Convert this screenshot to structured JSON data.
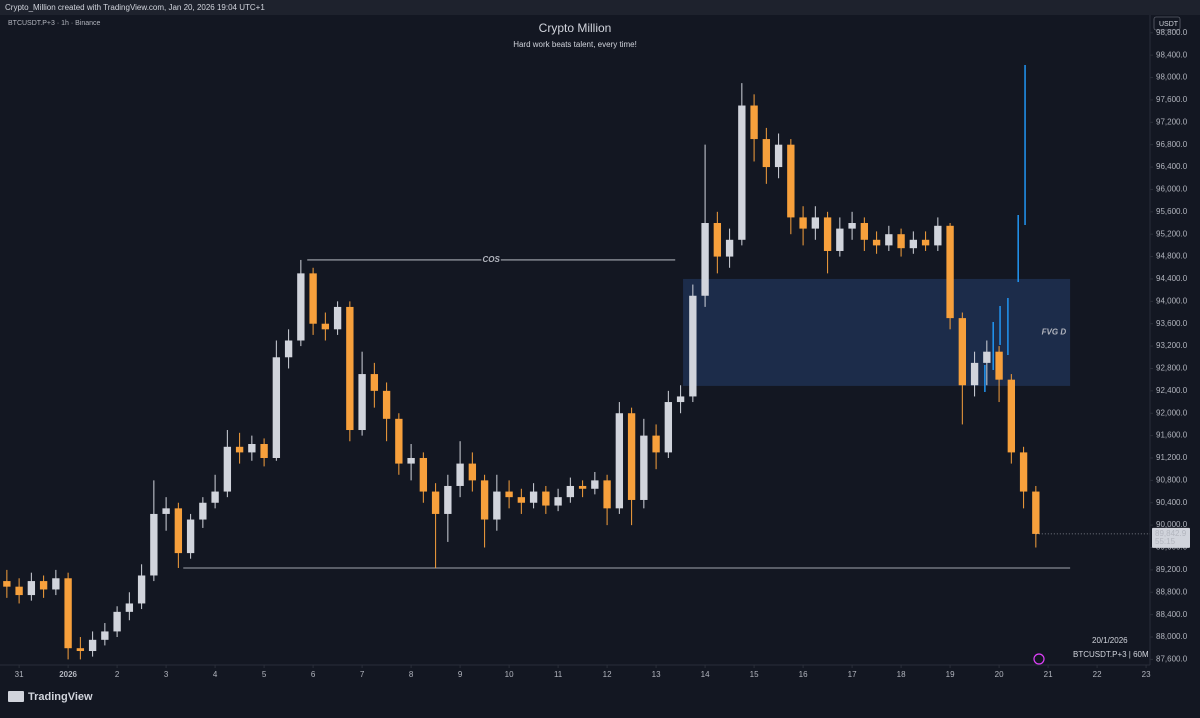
{
  "header": {
    "credit": "Crypto_Million created with TradingView.com, Jan 20, 2026 19:04 UTC+1",
    "brand": "TradingView"
  },
  "chart_data": {
    "type": "candlestick",
    "title": "Crypto Million",
    "subtitle": "Hard work beats talent, every time!",
    "symbol": "BTCUSDT.P+3 · 1h · Binance",
    "currency": "USDT",
    "date": "20/1/2026",
    "symbol_interval": "BTCUSDT.P+3 | 60M",
    "last_label": "89,842.9",
    "countdown": "55:15",
    "up_color": "#d1d4dc",
    "down_color": "#f7a03c",
    "grid": false,
    "xlim": [
      -0.39,
      23.08
    ],
    "ylim": [
      87500,
      99100
    ],
    "xticks": [
      {
        "value": 0,
        "label": "31"
      },
      {
        "value": 1,
        "label": "2026"
      },
      2,
      3,
      4,
      5,
      6,
      7,
      8,
      9,
      10,
      11,
      12,
      13,
      14,
      15,
      16,
      17,
      18,
      19,
      20,
      21,
      22,
      23
    ],
    "yticks": [
      {
        "value": 87600,
        "label": "87,600.0"
      },
      {
        "value": 88000,
        "label": "88,000.0"
      },
      {
        "value": 88400,
        "label": "88,400.0"
      },
      {
        "value": 88800,
        "label": "88,800.0"
      },
      {
        "value": 89200,
        "label": "89,200.0"
      },
      {
        "value": 89600,
        "label": "89,600.0"
      },
      {
        "value": 90000,
        "label": "90,000.0"
      },
      {
        "value": 90400,
        "label": "90,400.0"
      },
      {
        "value": 90800,
        "label": "90,800.0"
      },
      {
        "value": 91200,
        "label": "91,200.0"
      },
      {
        "value": 91600,
        "label": "91,600.0"
      },
      {
        "value": 92000,
        "label": "92,000.0"
      },
      {
        "value": 92400,
        "label": "92,400.0"
      },
      {
        "value": 92800,
        "label": "92,800.0"
      },
      {
        "value": 93200,
        "label": "93,200.0"
      },
      {
        "value": 93600,
        "label": "93,600.0"
      },
      {
        "value": 94000,
        "label": "94,000.0"
      },
      {
        "value": 94400,
        "label": "94,400.0"
      },
      {
        "value": 94800,
        "label": "94,800.0"
      },
      {
        "value": 95200,
        "label": "95,200.0"
      },
      {
        "value": 95600,
        "label": "95,600.0"
      },
      {
        "value": 96000,
        "label": "96,000.0"
      },
      {
        "value": 96400,
        "label": "96,400.0"
      },
      {
        "value": 96800,
        "label": "96,800.0"
      },
      {
        "value": 97200,
        "label": "97,200.0"
      },
      {
        "value": 97600,
        "label": "97,600.0"
      },
      {
        "value": 98000,
        "label": "98,000.0"
      },
      {
        "value": 98400,
        "label": "98,400.0"
      },
      {
        "value": 98800,
        "label": "98,800.0"
      }
    ],
    "x": [
      -0.25,
      0,
      0.25,
      0.5,
      0.75,
      1,
      1.25,
      1.5,
      1.75,
      2,
      2.25,
      2.5,
      2.75,
      3,
      3.25,
      3.5,
      3.75,
      4,
      4.25,
      4.5,
      4.75,
      5,
      5.25,
      5.5,
      5.75,
      6,
      6.25,
      6.5,
      6.75,
      7,
      7.25,
      7.5,
      7.75,
      8,
      8.25,
      8.5,
      8.75,
      9,
      9.25,
      9.5,
      9.75,
      10,
      10.25,
      10.5,
      10.75,
      11,
      11.25,
      11.5,
      11.75,
      12,
      12.25,
      12.5,
      12.75,
      13,
      13.25,
      13.5,
      13.75,
      14,
      14.25,
      14.5,
      14.75,
      15,
      15.25,
      15.5,
      15.75,
      16,
      16.25,
      16.5,
      16.75,
      17,
      17.25,
      17.5,
      17.75,
      18,
      18.25,
      18.5,
      18.75,
      19,
      19.25,
      19.5,
      19.75,
      20,
      20.25,
      20.5,
      20.75
    ],
    "open": [
      89000,
      88900,
      88750,
      89000,
      88850,
      89050,
      87800,
      87750,
      87950,
      88100,
      88450,
      88600,
      89100,
      90200,
      90300,
      89500,
      90100,
      90400,
      90600,
      91400,
      91300,
      91450,
      91200,
      93000,
      93300,
      94500,
      93600,
      93500,
      93900,
      91700,
      92700,
      92400,
      91900,
      91100,
      91200,
      90600,
      90200,
      90700,
      91100,
      90800,
      90100,
      90600,
      90500,
      90400,
      90600,
      90350,
      90500,
      90700,
      90650,
      90800,
      90300,
      92000,
      90450,
      91600,
      91300,
      92200,
      92300,
      94100,
      95400,
      94800,
      95100,
      97500,
      96900,
      96400,
      96800,
      95500,
      95300,
      95500,
      94900,
      95300,
      95400,
      95100,
      95000,
      95200,
      94950,
      95100,
      95000,
      95350,
      93700,
      92500,
      92900,
      93100,
      92600,
      91300,
      90600
    ],
    "high": [
      89200,
      89050,
      89150,
      89100,
      89200,
      89150,
      88000,
      88100,
      88250,
      88550,
      88800,
      89300,
      90800,
      90500,
      90400,
      90200,
      90500,
      90900,
      91700,
      91650,
      91600,
      91550,
      93300,
      93500,
      94740,
      94600,
      93800,
      94000,
      94000,
      93100,
      92900,
      92550,
      92000,
      91450,
      91300,
      90750,
      90900,
      91500,
      91300,
      90900,
      90900,
      90800,
      90650,
      90750,
      90700,
      90650,
      90850,
      90800,
      90950,
      90900,
      92200,
      92100,
      91900,
      91800,
      92400,
      92500,
      94300,
      96800,
      95600,
      95300,
      97900,
      97700,
      97100,
      97000,
      96900,
      95700,
      95700,
      95600,
      95500,
      95600,
      95500,
      95250,
      95350,
      95300,
      95250,
      95250,
      95500,
      95400,
      93800,
      93100,
      93300,
      93200,
      92700,
      91400,
      90700
    ],
    "low": [
      88700,
      88600,
      88650,
      88700,
      88750,
      87600,
      87600,
      87650,
      87850,
      88000,
      88300,
      88500,
      89000,
      89900,
      89234,
      89400,
      89950,
      90300,
      90500,
      91100,
      91150,
      91050,
      91150,
      92800,
      93200,
      93400,
      93300,
      93400,
      91500,
      91600,
      92100,
      91500,
      90900,
      90800,
      90400,
      89234,
      89700,
      90500,
      90600,
      89600,
      89900,
      90300,
      90200,
      90300,
      90200,
      90250,
      90400,
      90500,
      90550,
      90000,
      90200,
      90000,
      90300,
      91000,
      91200,
      92000,
      92200,
      93900,
      94500,
      94600,
      95000,
      96500,
      96100,
      96200,
      95200,
      95000,
      95100,
      94500,
      94800,
      95100,
      94900,
      94850,
      94900,
      94800,
      94850,
      94900,
      94900,
      93500,
      91800,
      92300,
      92500,
      92200,
      91100,
      90300,
      89600
    ],
    "close": [
      88900,
      88750,
      89000,
      88850,
      89050,
      87800,
      87750,
      87950,
      88100,
      88450,
      88600,
      89100,
      90200,
      90300,
      89500,
      90100,
      90400,
      90600,
      91400,
      91300,
      91450,
      91200,
      93000,
      93300,
      94500,
      93600,
      93500,
      93900,
      91700,
      92700,
      92400,
      91900,
      91100,
      91200,
      90600,
      90200,
      90700,
      91100,
      90800,
      90100,
      90600,
      90500,
      90400,
      90600,
      90350,
      90500,
      90700,
      90650,
      90800,
      90300,
      92000,
      90450,
      91600,
      91300,
      92200,
      92300,
      94100,
      95400,
      94800,
      95100,
      97500,
      96900,
      96400,
      96800,
      95500,
      95300,
      95500,
      94900,
      95300,
      95400,
      95100,
      95000,
      95200,
      94950,
      95100,
      95000,
      95350,
      93700,
      92500,
      92900,
      93100,
      92600,
      91300,
      90600,
      89842.9
    ],
    "spikes": {
      "color": "#2196f3",
      "x": [
        19.71,
        19.88,
        20.02,
        20.18,
        20.39,
        20.53
      ],
      "low": [
        92380,
        92773,
        93220,
        93041,
        94345,
        95365
      ],
      "high": [
        92862,
        93631,
        93917,
        94060,
        95543,
        98224
      ]
    },
    "lines": [
      {
        "label": "COS",
        "y": 94740,
        "x": [
          5.88,
          13.39
        ]
      },
      {
        "y": 89234,
        "x": [
          3.35,
          21.45
        ]
      }
    ],
    "zones": [
      {
        "label": "FVG D",
        "ylim": [
          92488,
          94400
        ],
        "xlim": [
          13.55,
          21.45
        ],
        "color": "#1c2c4a"
      }
    ]
  }
}
